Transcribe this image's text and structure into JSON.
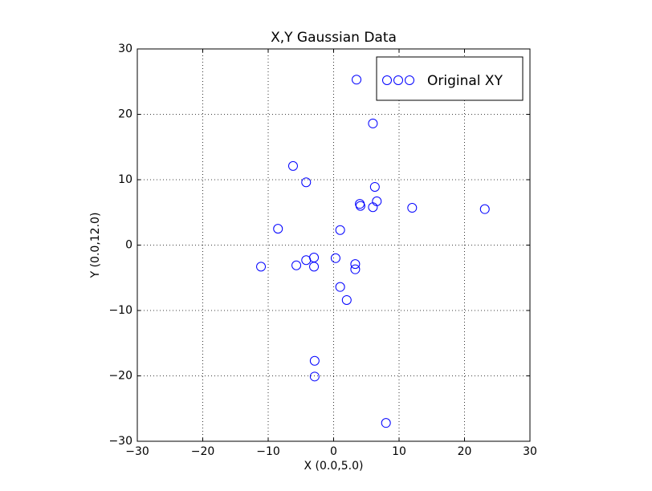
{
  "chart_data": {
    "type": "scatter",
    "title": "X,Y Gaussian Data",
    "x_label": "X (0.0,5.0)",
    "y_label": "Y (0.0,12.0)",
    "series": [
      {
        "name": "Original XY",
        "color": "#0000ff",
        "x": [
          3.5,
          6.0,
          -6.2,
          -4.2,
          6.3,
          4.0,
          4.1,
          6.6,
          6.0,
          12.0,
          23.1,
          -8.5,
          1.0,
          -11.1,
          -5.7,
          -4.2,
          -3.0,
          -3.0,
          0.3,
          3.3,
          3.3,
          1.0,
          2.0,
          -2.9,
          -2.9,
          8.0
        ],
        "values": [
          25.3,
          18.6,
          12.1,
          9.6,
          8.9,
          6.3,
          6.0,
          6.7,
          5.8,
          5.7,
          5.5,
          2.5,
          2.3,
          -3.3,
          -3.1,
          -2.3,
          -1.9,
          -3.3,
          -2.0,
          -2.9,
          -3.7,
          -6.4,
          -8.4,
          -17.7,
          -20.1,
          -27.2
        ]
      }
    ],
    "xlim": [
      -30,
      30
    ],
    "ylim": [
      -30,
      30
    ],
    "xticks": [
      {
        "value": -30,
        "label": "−30"
      },
      {
        "value": -20,
        "label": "−20"
      },
      {
        "value": -10,
        "label": "−10"
      },
      0,
      10,
      20,
      30
    ],
    "yticks": [
      {
        "value": -30,
        "label": "−30"
      },
      {
        "value": -20,
        "label": "−20"
      },
      {
        "value": -10,
        "label": "−10"
      },
      0,
      10,
      20,
      30
    ],
    "grid": true,
    "legend": "upper right"
  }
}
